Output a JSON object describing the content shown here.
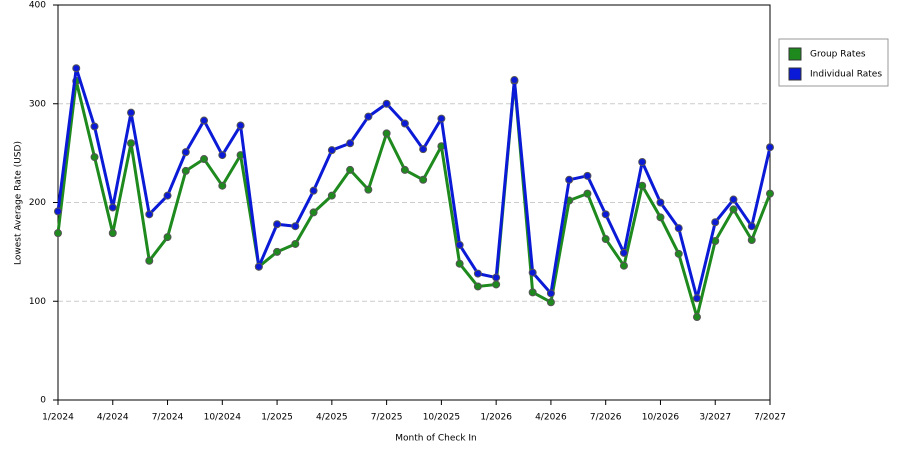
{
  "chart_data": {
    "type": "line",
    "x_label": "Month of Check In",
    "y_label": "Lowest Average Rate (USD)",
    "categories": [
      "1/2024",
      null,
      null,
      "4/2024",
      null,
      null,
      "7/2024",
      null,
      null,
      "10/2024",
      null,
      null,
      "1/2025",
      null,
      null,
      "4/2025",
      null,
      null,
      "7/2025",
      null,
      null,
      "10/2025",
      null,
      null,
      "1/2026",
      null,
      null,
      "4/2026",
      null,
      null,
      "7/2026",
      null,
      null,
      "10/2026",
      null,
      null,
      "3/2027",
      null,
      null,
      "7/2027"
    ],
    "series": [
      {
        "name": "Group Rates",
        "color": "#1e8a1e",
        "values": [
          169,
          323,
          246,
          169,
          260,
          141,
          165,
          232,
          244,
          217,
          248,
          135,
          150,
          158,
          190,
          207,
          233,
          213,
          270,
          233,
          223,
          257,
          138,
          115,
          117,
          323,
          109,
          99,
          202,
          209,
          163,
          136,
          217,
          185,
          148,
          84,
          161,
          193,
          162,
          209
        ]
      },
      {
        "name": "Individual Rates",
        "color": "#0a1ad6",
        "values": [
          191,
          336,
          277,
          195,
          291,
          188,
          207,
          251,
          283,
          248,
          278,
          135,
          178,
          176,
          212,
          253,
          260,
          287,
          300,
          280,
          254,
          285,
          157,
          128,
          124,
          324,
          129,
          108,
          223,
          227,
          188,
          149,
          241,
          200,
          174,
          103,
          180,
          203,
          176,
          256
        ]
      }
    ],
    "ylim": [
      0,
      400
    ],
    "yticks": [
      0,
      100,
      200,
      300,
      400
    ],
    "grid": true,
    "legend": "right"
  }
}
